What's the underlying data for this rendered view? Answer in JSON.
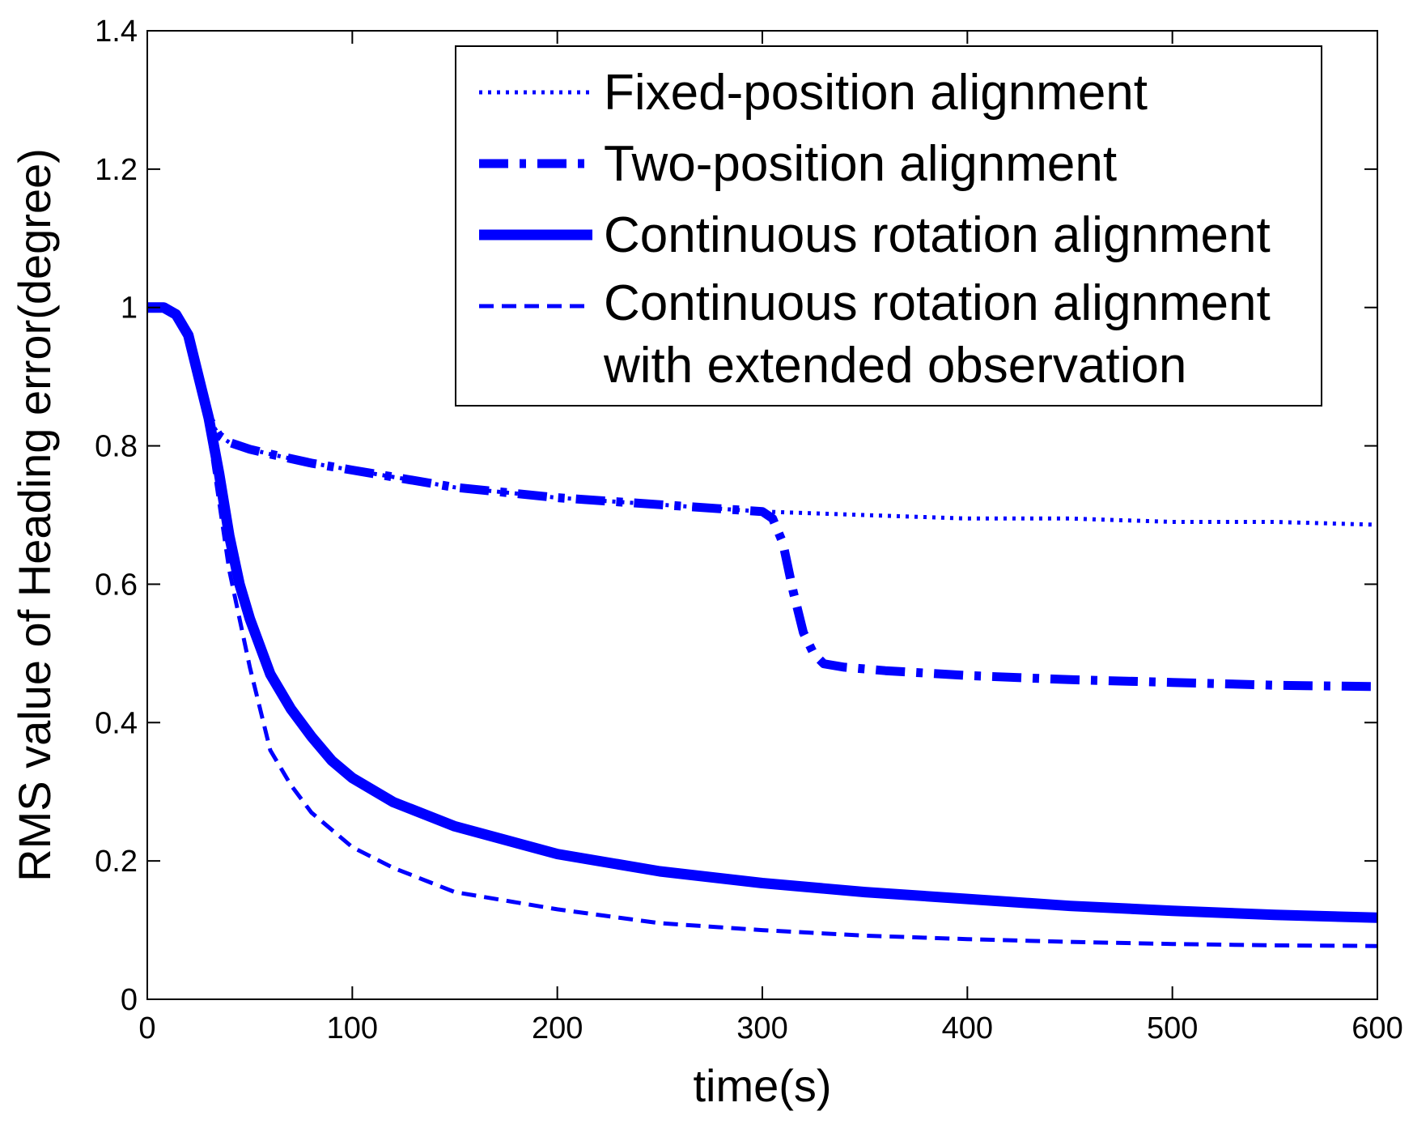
{
  "chart_data": {
    "type": "line",
    "title": "",
    "xlabel": "time(s)",
    "ylabel": "RMS value of Heading error(degree)",
    "xlim": [
      0,
      600
    ],
    "ylim": [
      0,
      1.4
    ],
    "xticks": [
      0,
      100,
      200,
      300,
      400,
      500,
      600
    ],
    "yticks": [
      0,
      0.2,
      0.4,
      0.6,
      0.8,
      1,
      1.2,
      1.4
    ],
    "xtick_labels": [
      "0",
      "100",
      "200",
      "300",
      "400",
      "500",
      "600"
    ],
    "ytick_labels": [
      "0",
      "0.2",
      "0.4",
      "0.6",
      "0.8",
      "1",
      "1.2",
      "1.4"
    ],
    "grid": false,
    "legend_position": "top-right",
    "line_color": "#0000ff",
    "series": [
      {
        "name": "Fixed-position alignment",
        "legend_lines": [
          "Fixed-position alignment"
        ],
        "style": "dotted",
        "x": [
          0,
          8,
          14,
          20,
          25,
          30,
          35,
          40,
          50,
          60,
          80,
          100,
          150,
          200,
          250,
          300,
          350,
          400,
          450,
          500,
          550,
          600
        ],
        "y": [
          1.0,
          1.0,
          0.99,
          0.96,
          0.9,
          0.84,
          0.815,
          0.805,
          0.795,
          0.788,
          0.775,
          0.765,
          0.74,
          0.725,
          0.715,
          0.705,
          0.7,
          0.695,
          0.695,
          0.69,
          0.69,
          0.686
        ]
      },
      {
        "name": "Two-position alignment",
        "legend_lines": [
          "Two-position alignment"
        ],
        "style": "dashdot",
        "x": [
          0,
          8,
          14,
          20,
          25,
          30,
          35,
          40,
          50,
          60,
          80,
          100,
          150,
          200,
          250,
          300,
          305,
          310,
          315,
          320,
          325,
          330,
          340,
          360,
          400,
          450,
          500,
          550,
          600
        ],
        "y": [
          1.0,
          1.0,
          0.99,
          0.96,
          0.9,
          0.84,
          0.815,
          0.805,
          0.795,
          0.788,
          0.775,
          0.765,
          0.74,
          0.725,
          0.715,
          0.705,
          0.695,
          0.66,
          0.59,
          0.53,
          0.5,
          0.485,
          0.48,
          0.475,
          0.468,
          0.462,
          0.458,
          0.454,
          0.452
        ]
      },
      {
        "name": "Continuous rotation alignment",
        "legend_lines": [
          "Continuous rotation alignment"
        ],
        "style": "solid",
        "x": [
          0,
          8,
          14,
          20,
          25,
          30,
          35,
          40,
          45,
          50,
          60,
          70,
          80,
          90,
          100,
          120,
          150,
          200,
          250,
          300,
          350,
          400,
          450,
          500,
          550,
          600
        ],
        "y": [
          1.0,
          1.0,
          0.99,
          0.96,
          0.9,
          0.84,
          0.76,
          0.67,
          0.6,
          0.55,
          0.47,
          0.42,
          0.38,
          0.345,
          0.32,
          0.285,
          0.25,
          0.21,
          0.185,
          0.168,
          0.155,
          0.145,
          0.135,
          0.128,
          0.122,
          0.118
        ]
      },
      {
        "name": "Continuous rotation alignment with extended observation",
        "legend_lines": [
          "Continuous rotation alignment",
          "with extended observation"
        ],
        "style": "dashed",
        "x": [
          0,
          8,
          14,
          20,
          25,
          30,
          35,
          40,
          45,
          50,
          60,
          70,
          80,
          100,
          120,
          150,
          200,
          250,
          300,
          350,
          400,
          450,
          500,
          550,
          600
        ],
        "y": [
          1.0,
          1.0,
          0.99,
          0.96,
          0.9,
          0.82,
          0.72,
          0.62,
          0.55,
          0.48,
          0.36,
          0.31,
          0.27,
          0.22,
          0.19,
          0.155,
          0.13,
          0.11,
          0.1,
          0.092,
          0.087,
          0.083,
          0.08,
          0.078,
          0.077
        ]
      }
    ]
  }
}
